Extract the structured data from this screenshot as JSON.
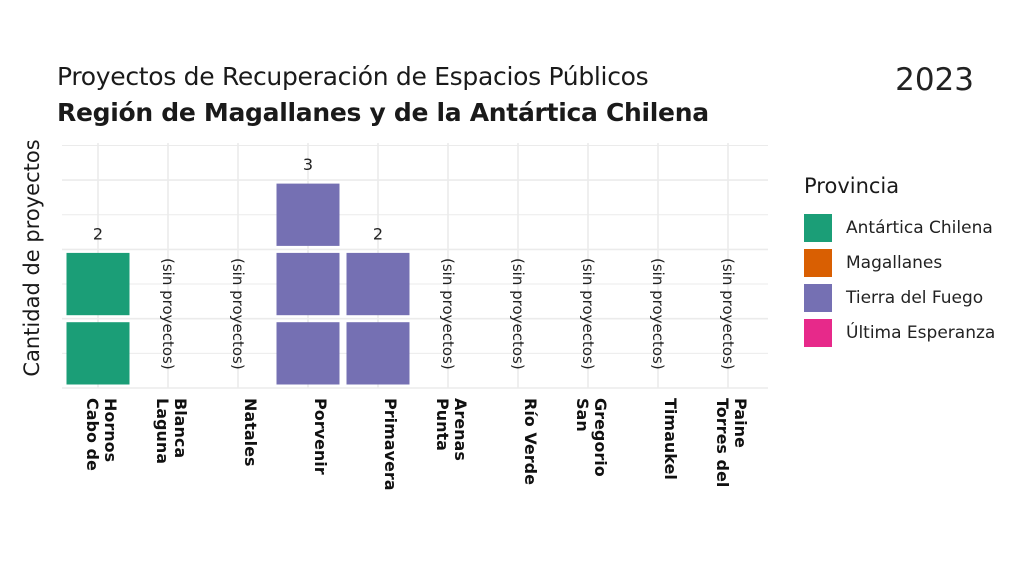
{
  "title": "Proyectos de Recuperación de Espacios Públicos",
  "subtitle": "Región de Magallanes y de la Antártica Chilena",
  "year": "2023",
  "no_projects_label": "(sin proyectos)",
  "legend": {
    "title": "Provincia",
    "items": [
      {
        "label": "Antártica Chilena",
        "color": "#1b9e77"
      },
      {
        "label": "Magallanes",
        "color": "#d95f02"
      },
      {
        "label": "Tierra del Fuego",
        "color": "#7570b3"
      },
      {
        "label": "Última Esperanza",
        "color": "#e7298a"
      }
    ]
  },
  "chart_data": {
    "type": "bar",
    "ylabel": "Cantidad de proyectos",
    "xlabel": "",
    "ylim": [
      0,
      3.5
    ],
    "categories": [
      {
        "label": "Cabo de Hornos",
        "label_lines": [
          "Cabo de",
          "Hornos"
        ],
        "value": 2,
        "provincia": "Antártica Chilena"
      },
      {
        "label": "Laguna Blanca",
        "label_lines": [
          "Laguna",
          "Blanca"
        ],
        "value": 0,
        "provincia": null
      },
      {
        "label": "Natales",
        "label_lines": [
          "Natales"
        ],
        "value": 0,
        "provincia": null
      },
      {
        "label": "Porvenir",
        "label_lines": [
          "Porvenir"
        ],
        "value": 3,
        "provincia": "Tierra del Fuego"
      },
      {
        "label": "Primavera",
        "label_lines": [
          "Primavera"
        ],
        "value": 2,
        "provincia": "Tierra del Fuego"
      },
      {
        "label": "Punta Arenas",
        "label_lines": [
          "Punta",
          "Arenas"
        ],
        "value": 0,
        "provincia": null
      },
      {
        "label": "Río Verde",
        "label_lines": [
          "Río Verde"
        ],
        "value": 0,
        "provincia": null
      },
      {
        "label": "San Gregorio",
        "label_lines": [
          "San",
          "Gregorio"
        ],
        "value": 0,
        "provincia": null
      },
      {
        "label": "Timaukel",
        "label_lines": [
          "Timaukel"
        ],
        "value": 0,
        "provincia": null
      },
      {
        "label": "Torres del Paine",
        "label_lines": [
          "Torres del",
          "Paine"
        ],
        "value": 0,
        "provincia": null
      }
    ]
  }
}
